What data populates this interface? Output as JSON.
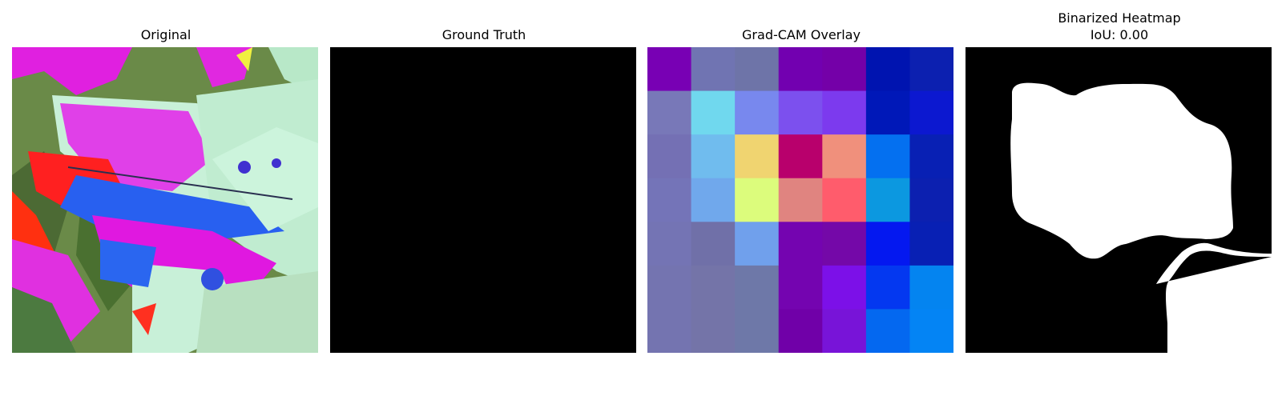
{
  "panels": [
    {
      "id": "original",
      "title": "Original"
    },
    {
      "id": "ground-truth",
      "title": "Ground Truth"
    },
    {
      "id": "gradcam",
      "title": "Grad-CAM Overlay",
      "grid": [
        [
          "#7800b4",
          "#7074b2",
          "#6e74a8",
          "#7200b0",
          "#7400a8",
          "#0014b0",
          "#0c20b0"
        ],
        [
          "#7878b8",
          "#70d8ee",
          "#7888ee",
          "#7c50ee",
          "#7c3aee",
          "#0018b8",
          "#0c18d0"
        ],
        [
          "#7470b4",
          "#70bcee",
          "#f0d470",
          "#b8006c",
          "#f0907c",
          "#0470f0",
          "#0820b4"
        ],
        [
          "#7474b8",
          "#70a8ec",
          "#dcfc7c",
          "#e08480",
          "#ff5c6c",
          "#0c98e0",
          "#0c20b0"
        ],
        [
          "#7474b4",
          "#7070a8",
          "#70a0ec",
          "#7404b0",
          "#7408a8",
          "#0418f0",
          "#0820b4"
        ],
        [
          "#7474b0",
          "#7474a8",
          "#6e78a8",
          "#7404b0",
          "#7c10e8",
          "#0438f0",
          "#0484f0"
        ],
        [
          "#7474b0",
          "#7474a8",
          "#6e78a8",
          "#7000a8",
          "#7814d8",
          "#0468f0",
          "#0484f4"
        ]
      ]
    },
    {
      "id": "binarized",
      "title": "Binarized Heatmap",
      "subtitle": "IoU: 0.00"
    }
  ]
}
